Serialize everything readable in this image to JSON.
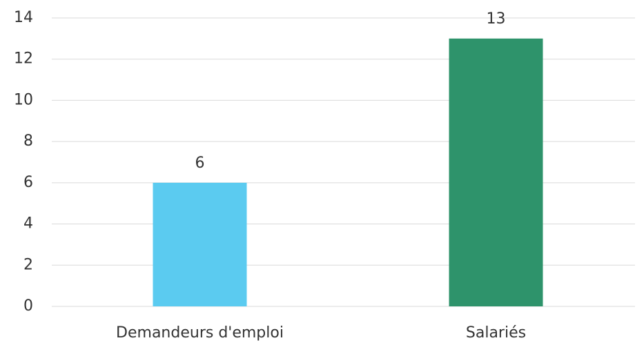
{
  "chart_data": {
    "type": "bar",
    "categories": [
      "Demandeurs d'emploi",
      "Salariés"
    ],
    "values": [
      6,
      13
    ],
    "colors": [
      "#5bcbf0",
      "#2e936b"
    ],
    "ylim": [
      0,
      14
    ],
    "yticks": [
      0,
      2,
      4,
      6,
      8,
      10,
      12,
      14
    ],
    "grid": true
  }
}
